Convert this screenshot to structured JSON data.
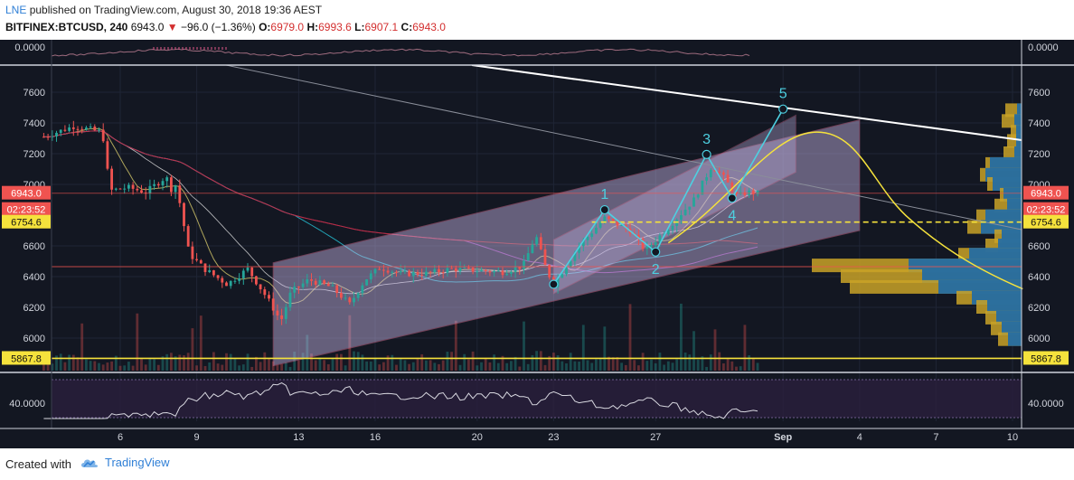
{
  "header": {
    "author": "LNE",
    "published_text": "published on TradingView.com, August 30, 2018 19:36 AEST",
    "symbol": "BITFINEX:BTCUSD, 240",
    "last": "6943.0",
    "change": "−96.0 (−1.36%)",
    "open_label": "O:",
    "open": "6979.0",
    "high_label": "H:",
    "high": "6993.6",
    "low_label": "L:",
    "low": "6907.1",
    "close_label": "C:",
    "close": "6943.0"
  },
  "footer": {
    "created_with": "Created with",
    "brand": "TradingView"
  },
  "colors": {
    "background": "#131722",
    "up": "#26a69a",
    "down": "#ef5350",
    "wave": "#4dd0e1",
    "channel": "#c9b8e8",
    "yellow": "#f5e23c"
  },
  "chart_data": [
    {
      "type": "line",
      "panel": "oscillator-top",
      "y_ticks": [
        "0.0000"
      ],
      "right_label": "0.0000"
    },
    {
      "type": "candlestick",
      "panel": "price",
      "x_ticks": [
        "6",
        "9",
        "13",
        "16",
        "20",
        "23",
        "27",
        "Sep",
        "4",
        "7",
        "10"
      ],
      "y_ticks": [
        7600,
        7400,
        7200,
        7000,
        6600,
        6400,
        6200,
        6000
      ],
      "ylim": [
        5800,
        7800
      ],
      "price_labels": {
        "last": "6943.0",
        "countdown": "02:23:52",
        "dashed_level": "6754.6",
        "low_level": "5867.8"
      },
      "wave_labels": [
        "1",
        "2",
        "3",
        "4",
        "5"
      ],
      "wave_points": [
        {
          "label": "",
          "x": "Aug 23",
          "y": 6350
        },
        {
          "label": "1",
          "x": "Aug 25",
          "y": 6835
        },
        {
          "label": "2",
          "x": "Aug 27",
          "y": 6560
        },
        {
          "label": "3",
          "x": "Aug 29",
          "y": 7195
        },
        {
          "label": "4",
          "x": "Aug 30",
          "y": 6910
        },
        {
          "label": "5",
          "x": "Sep 1",
          "y": 7490
        }
      ]
    },
    {
      "type": "line",
      "panel": "rsi",
      "y_ticks": [
        "40.0000"
      ],
      "right_label": "40.0000"
    }
  ]
}
